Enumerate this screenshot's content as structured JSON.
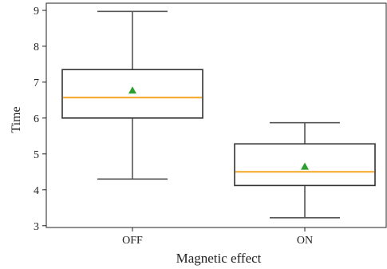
{
  "chart_data": {
    "type": "boxplot",
    "title": "",
    "xlabel": "Magnetic effect",
    "ylabel": "Time",
    "categories": [
      "OFF",
      "ON"
    ],
    "ylim": [
      2.95,
      9.2
    ],
    "yticks": [
      3,
      4,
      5,
      6,
      7,
      8,
      9
    ],
    "grid": false,
    "legend": "none",
    "boxes": [
      {
        "category": "OFF",
        "whisker_low": 4.3,
        "q1": 6.0,
        "median": 6.57,
        "q3": 7.35,
        "whisker_high": 8.97,
        "mean": 6.77
      },
      {
        "category": "ON",
        "whisker_low": 3.22,
        "q1": 4.12,
        "median": 4.5,
        "q3": 5.28,
        "whisker_high": 5.87,
        "mean": 4.65
      }
    ]
  },
  "colors": {
    "box_stroke": "#333333",
    "whisker": "#555555",
    "median": "#f5a623",
    "mean_marker": "#2ca02c",
    "axis": "#222222"
  },
  "icons": {
    "mean_marker": "triangle-marker"
  }
}
